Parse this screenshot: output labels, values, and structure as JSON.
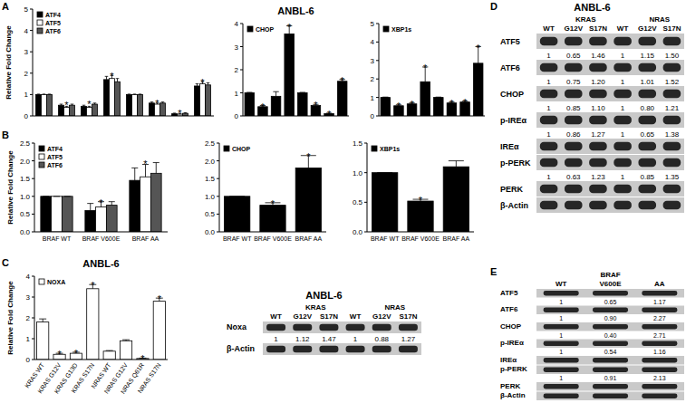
{
  "panel_labels": [
    "A",
    "B",
    "C",
    "D",
    "E"
  ],
  "chart_data": [
    {
      "type": "bar",
      "categories": [
        null,
        null,
        null,
        null,
        null,
        null,
        null,
        null
      ],
      "series": [
        {
          "name": "ATF4",
          "color": "#000000",
          "values": [
            1,
            0.5,
            0.45,
            1.7,
            1,
            0.6,
            0.1,
            1.4
          ],
          "errors": [
            0.02,
            0.05,
            0.05,
            0.15,
            0.02,
            0.05,
            0.03,
            0.1
          ]
        },
        {
          "name": "ATF5",
          "color": "#ffffff",
          "values": [
            1,
            0.4,
            0.4,
            1.75,
            1,
            0.55,
            0.08,
            1.5
          ],
          "errors": [
            0.02,
            0.05,
            0.05,
            0.15,
            0.02,
            0.05,
            0.03,
            0.1
          ]
        },
        {
          "name": "ATF6",
          "color": "#555555",
          "values": [
            1,
            0.5,
            0.55,
            1.6,
            1,
            0.6,
            0.12,
            1.45
          ],
          "errors": [
            0.02,
            0.05,
            0.05,
            0.15,
            0.02,
            0.05,
            0.03,
            0.1
          ]
        }
      ],
      "ylim": [
        0,
        5
      ],
      "yticks": [
        0,
        1,
        2,
        3,
        4,
        5
      ],
      "y_label": "Relative Fold Change",
      "legend": "upper left",
      "tick_labels": "y",
      "significance_mark": "*",
      "significant": [
        1,
        2,
        3,
        5,
        6,
        7
      ]
    },
    {
      "type": "bar",
      "title": "ANBL-6",
      "categories": [
        null,
        null,
        null,
        null,
        null,
        null,
        null,
        null
      ],
      "series": [
        {
          "name": "CHOP",
          "color": "#000000",
          "values": [
            1,
            0.4,
            0.85,
            3.55,
            1,
            0.45,
            0.1,
            1.5
          ],
          "errors": [
            0.02,
            0.05,
            0.2,
            0.35,
            0.02,
            0.05,
            0.02,
            0.08
          ]
        }
      ],
      "ylim": [
        0,
        4
      ],
      "yticks": [
        0,
        1,
        2,
        3,
        4
      ],
      "legend": "upper left",
      "tick_labels": "y",
      "significance_mark": "*",
      "significant": [
        1,
        3,
        5,
        6,
        7
      ]
    },
    {
      "type": "bar",
      "categories": [
        null,
        null,
        null,
        null,
        null,
        null,
        null,
        null
      ],
      "series": [
        {
          "name": "XBP1s",
          "color": "#000000",
          "values": [
            1,
            0.55,
            0.65,
            1.85,
            1,
            0.7,
            0.75,
            2.85
          ],
          "errors": [
            0.02,
            0.05,
            0.05,
            0.8,
            0.02,
            0.05,
            0.05,
            0.9
          ]
        }
      ],
      "ylim": [
        0,
        5
      ],
      "yticks": [
        0,
        1,
        2,
        3,
        4,
        5
      ],
      "legend": "upper left",
      "tick_labels": "y",
      "significance_mark": "*",
      "significant": [
        1,
        2,
        3,
        5,
        6,
        7
      ]
    },
    {
      "type": "bar",
      "categories": [
        "BRAF WT",
        "BRAF V600E",
        "BRAF AA"
      ],
      "series": [
        {
          "name": "ATF4",
          "color": "#000000",
          "values": [
            1,
            0.6,
            1.45
          ],
          "errors": [
            0,
            0.2,
            0.35
          ]
        },
        {
          "name": "ATF5",
          "color": "#ffffff",
          "values": [
            1,
            0.7,
            1.55
          ],
          "errors": [
            0,
            0.15,
            0.35
          ]
        },
        {
          "name": "ATF6",
          "color": "#555555",
          "values": [
            1,
            0.75,
            1.65
          ],
          "errors": [
            0,
            0.1,
            0.3
          ]
        }
      ],
      "ylim": [
        0,
        2.5
      ],
      "yticks": [
        {
          "value": 0,
          "label": "0.0"
        },
        {
          "value": 0.5,
          "label": "0.5"
        },
        {
          "value": 1,
          "label": "1.0"
        },
        {
          "value": 1.5,
          "label": "1.5"
        },
        {
          "value": 2,
          "label": "2.0"
        },
        {
          "value": 2.5,
          "label": "2.5"
        }
      ],
      "y_label": "Relative Fold Change",
      "legend": "upper left",
      "significance_mark": "*",
      "significant": [
        1,
        2
      ]
    },
    {
      "type": "bar",
      "categories": [
        "BRAF WT",
        "BRAF V600E",
        "BRAF AA"
      ],
      "series": [
        {
          "name": "CHOP",
          "color": "#000000",
          "values": [
            1,
            0.75,
            1.8
          ],
          "errors": [
            0,
            0.07,
            0.35
          ]
        }
      ],
      "ylim": [
        0,
        2.5
      ],
      "yticks": [
        {
          "value": 0,
          "label": "0.0"
        },
        {
          "value": 0.5,
          "label": "0.5"
        },
        {
          "value": 1,
          "label": "1.0"
        },
        {
          "value": 1.5,
          "label": "1.5"
        },
        {
          "value": 2,
          "label": "2.0"
        },
        {
          "value": 2.5,
          "label": "2.5"
        }
      ],
      "legend": "upper left",
      "significance_mark": "*",
      "significant": [
        1,
        2
      ]
    },
    {
      "type": "bar",
      "categories": [
        "BRAF WT",
        "BRAF V600E",
        "BRAF AA"
      ],
      "series": [
        {
          "name": "XBP1s",
          "color": "#000000",
          "values": [
            1,
            0.52,
            1.1
          ],
          "errors": [
            0,
            0.03,
            0.1
          ]
        }
      ],
      "ylim": [
        0,
        1.5
      ],
      "yticks": [
        {
          "value": 0,
          "label": "0.0"
        },
        {
          "value": 0.5,
          "label": "0.5"
        },
        {
          "value": 1,
          "label": "1.0"
        },
        {
          "value": 1.5,
          "label": "1.5"
        }
      ],
      "legend": "upper left",
      "significance_mark": "*",
      "significant": [
        1
      ]
    },
    {
      "type": "bar",
      "title": "ANBL-6",
      "categories": [
        "KRAS WT",
        "KRAS G12V",
        "KRAS G13D",
        "KRAS S17N",
        "NRAS WT",
        "NRAS G12V",
        "NRAS Q61R",
        "NRAS S17N"
      ],
      "series": [
        {
          "name": "NOXA",
          "color": "#ffffff",
          "values": [
            1.8,
            0.25,
            0.3,
            3.4,
            0.4,
            0.9,
            0.05,
            2.8
          ],
          "errors": [
            0.15,
            0.05,
            0.05,
            0.2,
            0.03,
            0.05,
            0.02,
            0.15
          ]
        }
      ],
      "ylim": [
        0,
        4
      ],
      "yticks": [
        0,
        1,
        2,
        3,
        4
      ],
      "y_label": "Relative Fold Change",
      "legend": "upper left",
      "significance_mark": "*",
      "significant": [
        1,
        2,
        3,
        6,
        7
      ]
    }
  ],
  "blots": [
    {
      "title": "ANBL-6",
      "groups": [
        {
          "label": "KRAS",
          "columns": [
            1,
            2
          ]
        },
        {
          "label": "NRAS",
          "columns": [
            4,
            5
          ]
        }
      ],
      "columns": [
        "WT",
        "G12V",
        "S17N",
        "WT",
        "G12V",
        "S17N"
      ],
      "rows": [
        {
          "label": "Noxa",
          "values": [
            "1",
            "1.12",
            "1.47",
            "1",
            "0.88",
            "1.27"
          ]
        },
        {
          "label": "β-Actin"
        }
      ]
    },
    {
      "title": "ANBL-6",
      "groups": [
        {
          "label": "KRAS",
          "columns": [
            1,
            2
          ]
        },
        {
          "label": "NRAS",
          "columns": [
            4,
            5
          ]
        }
      ],
      "columns": [
        "WT",
        "G12V",
        "S17N",
        "WT",
        "G12V",
        "S17N"
      ],
      "rows": [
        {
          "label": "ATF5",
          "values": [
            "1",
            "0.65",
            "1.46",
            "1",
            "1.15",
            "1.50"
          ]
        },
        {
          "label": "ATF6",
          "values": [
            "1",
            "0.75",
            "1.20",
            "1",
            "1.01",
            "1.52"
          ]
        },
        {
          "label": "CHOP",
          "values": [
            "1",
            "0.85",
            "1.10",
            "1",
            "0.80",
            "1.21"
          ]
        },
        {
          "label": "p-IREα",
          "values": [
            "1",
            "0.86",
            "1.27",
            "1",
            "0.65",
            "1.38"
          ]
        },
        {
          "label": "IREα"
        },
        {
          "label": "p-PERK",
          "values": [
            "1",
            "0.63",
            "1.23",
            "1",
            "0.85",
            "1.35"
          ]
        },
        {
          "label": "PERK"
        },
        {
          "label": "β-Actin"
        }
      ]
    },
    {
      "groups": [
        {
          "label": "BRAF",
          "columns": [
            1
          ]
        }
      ],
      "columns": [
        "WT",
        "V600E",
        "AA"
      ],
      "rows": [
        {
          "label": "ATF5",
          "values": [
            "1",
            "0.65",
            "1.17"
          ]
        },
        {
          "label": "ATF6",
          "values": [
            "1",
            "0.90",
            "2.27"
          ]
        },
        {
          "label": "CHOP",
          "values": [
            "1",
            "0.40",
            "2.71"
          ]
        },
        {
          "label": "p-IREα",
          "values": [
            "1",
            "0.54",
            "1.16"
          ]
        },
        {
          "label": "IREα"
        },
        {
          "label": "p-PERK",
          "values": [
            "1",
            "0.91",
            "2.13"
          ]
        },
        {
          "label": "PERK"
        },
        {
          "label": "β-Actin"
        }
      ]
    }
  ]
}
